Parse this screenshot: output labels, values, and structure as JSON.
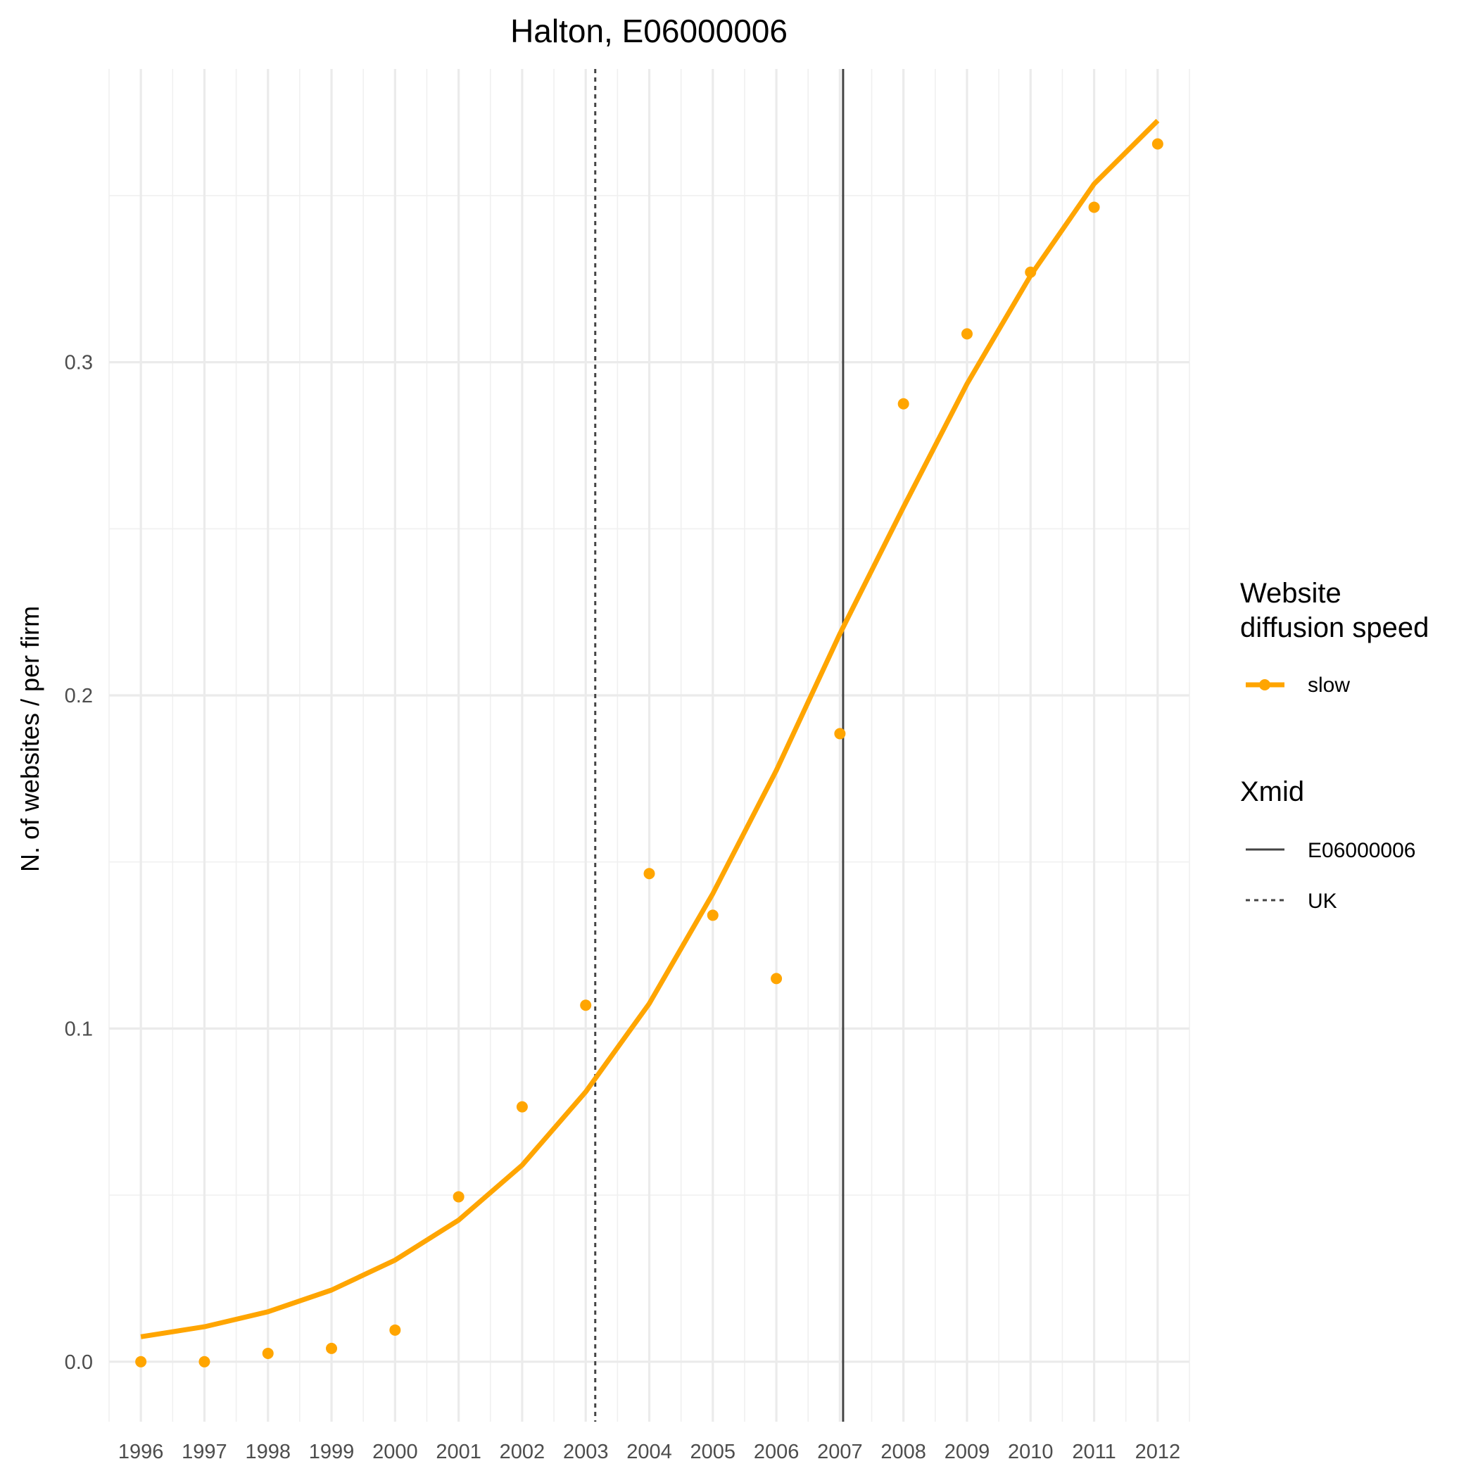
{
  "chart_data": {
    "type": "line",
    "title": "Halton, E06000006",
    "xlabel": "",
    "ylabel": "N. of websites / per firm",
    "x": [
      1996,
      1997,
      1998,
      1999,
      2000,
      2001,
      2002,
      2003,
      2004,
      2005,
      2006,
      2007,
      2008,
      2009,
      2010,
      2011,
      2012
    ],
    "x_tick_labels": [
      "1996",
      "1997",
      "1998",
      "1999",
      "2000",
      "2001",
      "2002",
      "2003",
      "2004",
      "2005",
      "2006",
      "2007",
      "2008",
      "2009",
      "2010",
      "2011",
      "2012"
    ],
    "y_ticks": [
      0.0,
      0.1,
      0.2,
      0.3
    ],
    "y_tick_labels": [
      "0.0",
      "0.1",
      "0.2",
      "0.3"
    ],
    "xlim": [
      1995.5,
      2012.5
    ],
    "ylim": [
      -0.018,
      0.388
    ],
    "series": [
      {
        "name": "slow",
        "color": "#FFA500",
        "points": [
          0.0,
          0.0,
          0.0025,
          0.004,
          0.0095,
          0.0495,
          0.0765,
          0.107,
          0.1465,
          0.134,
          0.115,
          0.1885,
          0.2875,
          0.3085,
          0.327,
          0.3465,
          0.3655
        ],
        "fitted": [
          0.0075,
          0.0105,
          0.015,
          0.0215,
          0.0305,
          0.0425,
          0.059,
          0.081,
          0.1075,
          0.1405,
          0.1775,
          0.2185,
          0.2565,
          0.2935,
          0.326,
          0.3535,
          0.3725
        ]
      }
    ],
    "vlines": [
      {
        "name": "E06000006",
        "x": 2007.05,
        "linetype": "solid",
        "color": "#444444"
      },
      {
        "name": "UK",
        "x": 2003.15,
        "linetype": "dotted",
        "color": "#444444"
      }
    ],
    "grid": true,
    "legend_placement": "right",
    "legend": {
      "speed_title_line1": "Website",
      "speed_title_line2": "diffusion speed",
      "speed_label": "slow",
      "xmid_title": "Xmid",
      "xmid_labels": [
        "E06000006",
        "UK"
      ]
    }
  }
}
